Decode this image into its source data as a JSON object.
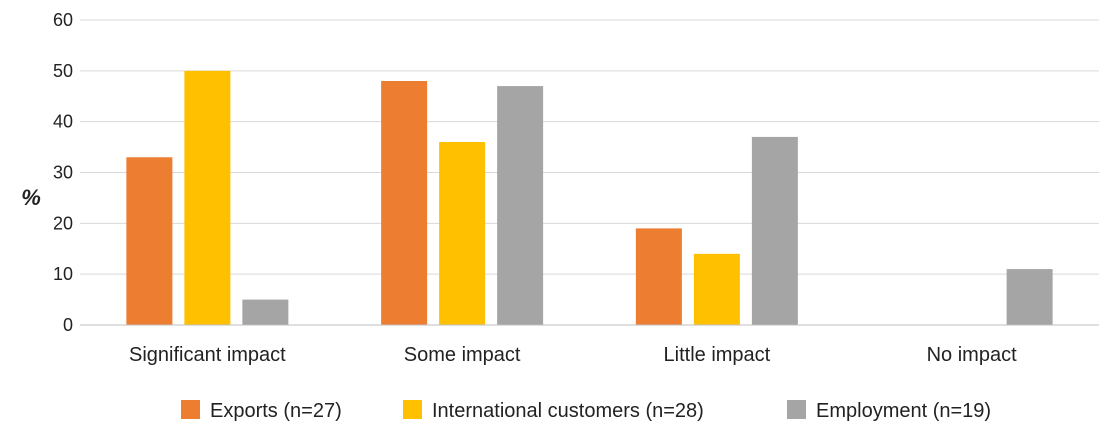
{
  "chart_data": {
    "type": "bar",
    "title": "",
    "xlabel": "",
    "ylabel": "%",
    "ylim": [
      0,
      60
    ],
    "yticks": [
      0,
      10,
      20,
      30,
      40,
      50,
      60
    ],
    "grid": true,
    "legend_position": "bottom",
    "categories": [
      "Significant impact",
      "Some impact",
      "Little impact",
      "No impact"
    ],
    "series": [
      {
        "name": "Exports (n=27)",
        "color": "#ED7D31",
        "values": [
          33,
          48,
          19,
          0
        ]
      },
      {
        "name": "International customers (n=28)",
        "color": "#FFC000",
        "values": [
          50,
          36,
          14,
          0
        ]
      },
      {
        "name": "Employment (n=19)",
        "color": "#A5A5A5",
        "values": [
          5,
          47,
          37,
          11
        ]
      }
    ]
  }
}
